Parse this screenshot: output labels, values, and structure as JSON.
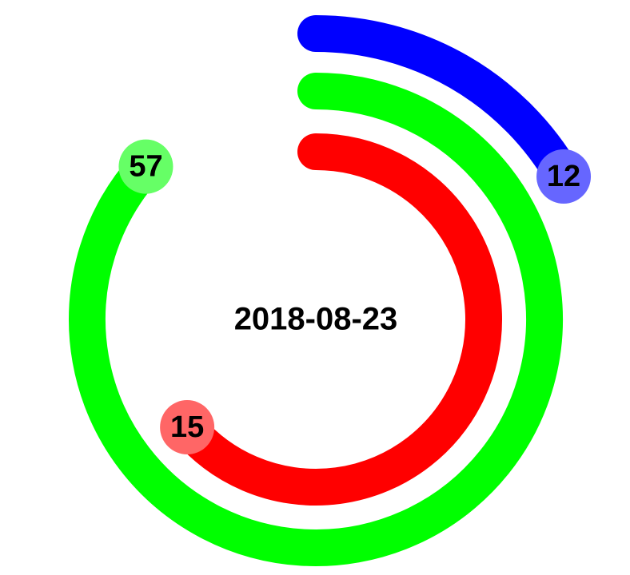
{
  "chart_data": {
    "type": "radial-bar",
    "center_label": "2018-08-23",
    "series": [
      {
        "value": 12,
        "color": "#0000ff",
        "badge_color": "#6666ff"
      },
      {
        "value": 57,
        "color": "#00ff00",
        "badge_color": "#66ff66"
      },
      {
        "value": 15,
        "color": "#ff0000",
        "badge_color": "#ff6666"
      }
    ]
  }
}
